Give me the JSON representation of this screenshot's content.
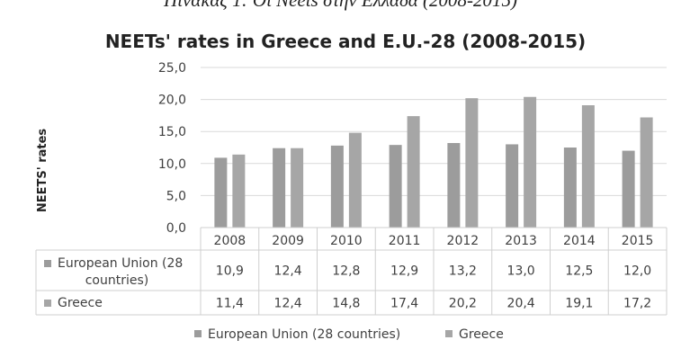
{
  "caption": "Πίνακας 1: Οι Neets στην Ελλάδα (2008-2015)",
  "colors": {
    "eu": "#9c9c9c",
    "greece": "#a6a6a6",
    "grid": "#d9d9d9",
    "text": "#404040"
  },
  "chart_data": {
    "type": "bar",
    "title": "NEETs' rates in Greece and E.U.-28 (2008-2015)",
    "xlabel": "",
    "ylabel": "NEETS' rates",
    "ylim": [
      0,
      25
    ],
    "yticks": [
      "0,0",
      "5,0",
      "10,0",
      "15,0",
      "20,0",
      "25,0"
    ],
    "grid": true,
    "legend": "bottom",
    "categories": [
      "2008",
      "2009",
      "2010",
      "2011",
      "2012",
      "2013",
      "2014",
      "2015"
    ],
    "series": [
      {
        "name": "European Union (28 countries)",
        "table_label_lines": [
          "European Union (28",
          "countries)"
        ],
        "values": [
          10.9,
          12.4,
          12.8,
          12.9,
          13.2,
          13.0,
          12.5,
          12.0
        ],
        "labels": [
          "10,9",
          "12,4",
          "12,8",
          "12,9",
          "13,2",
          "13,0",
          "12,5",
          "12,0"
        ]
      },
      {
        "name": "Greece",
        "table_label_lines": [
          "Greece"
        ],
        "values": [
          11.4,
          12.4,
          14.8,
          17.4,
          20.2,
          20.4,
          19.1,
          17.2
        ],
        "labels": [
          "11,4",
          "12,4",
          "14,8",
          "17,4",
          "20,2",
          "20,4",
          "19,1",
          "17,2"
        ]
      }
    ]
  }
}
